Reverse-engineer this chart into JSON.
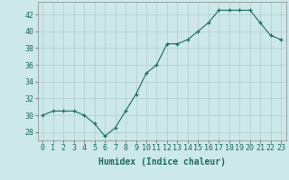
{
  "x": [
    0,
    1,
    2,
    3,
    4,
    5,
    6,
    7,
    8,
    9,
    10,
    11,
    12,
    13,
    14,
    15,
    16,
    17,
    18,
    19,
    20,
    21,
    22,
    23
  ],
  "y": [
    30,
    30.5,
    30.5,
    30.5,
    30,
    29,
    27.5,
    28.5,
    30.5,
    32.5,
    35,
    36,
    38.5,
    38.5,
    39,
    40,
    41,
    42.5,
    42.5,
    42.5,
    42.5,
    41,
    39.5,
    39
  ],
  "xlabel": "Humidex (Indice chaleur)",
  "xlim": [
    -0.5,
    23.5
  ],
  "ylim": [
    27,
    43.5
  ],
  "yticks": [
    28,
    30,
    32,
    34,
    36,
    38,
    40,
    42
  ],
  "xticks": [
    0,
    1,
    2,
    3,
    4,
    5,
    6,
    7,
    8,
    9,
    10,
    11,
    12,
    13,
    14,
    15,
    16,
    17,
    18,
    19,
    20,
    21,
    22,
    23
  ],
  "line_color": "#1a6b5e",
  "marker": "+",
  "bg_color": "#cce8e8",
  "grid_color": "#b0cccc",
  "label_fontsize": 7,
  "tick_fontsize": 6,
  "line_width": 0.8,
  "marker_size": 3.5
}
